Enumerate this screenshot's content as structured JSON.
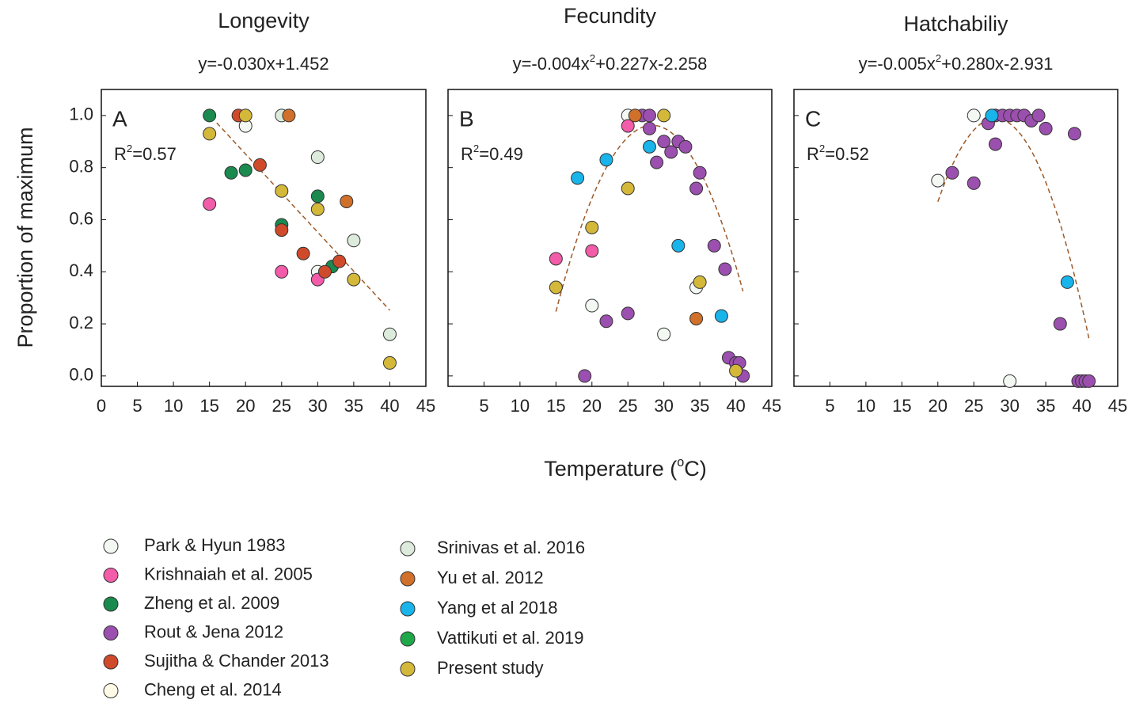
{
  "chart_data": {
    "type": "scatter",
    "ylabel": "Proportion of maximum",
    "xlabel": [
      "Temperature (",
      "o",
      "C)"
    ],
    "series": [
      {
        "name": "Park & Hyun 1983",
        "color": "#f3f8f3"
      },
      {
        "name": "Krishnaiah et al. 2005",
        "color": "#f25ca8"
      },
      {
        "name": "Zheng et al. 2009",
        "color": "#1a8a4e"
      },
      {
        "name": "Rout & Jena 2012",
        "color": "#9b4fae"
      },
      {
        "name": "Sujitha & Chander 2013",
        "color": "#cf4a2b"
      },
      {
        "name": "Cheng et al. 2014",
        "color": "#fffbe6"
      },
      {
        "name": "Srinivas et al. 2016",
        "color": "#dcebdc"
      },
      {
        "name": "Yu et al. 2012",
        "color": "#d0702a"
      },
      {
        "name": "Yang et al 2018",
        "color": "#18b4ea"
      },
      {
        "name": "Vattikuti et al. 2019",
        "color": "#1fa84a"
      },
      {
        "name": "Present study",
        "color": "#d4b83a"
      }
    ],
    "panels": [
      {
        "title": "Longevity",
        "letter": "A",
        "equation": [
          "y=-0.030x+1.452"
        ],
        "r2": [
          "R",
          "2",
          "=0.57"
        ],
        "xlim": [
          0,
          45
        ],
        "ylim": [
          -0.04,
          1.1
        ],
        "xticks": [
          0,
          5,
          10,
          15,
          20,
          25,
          30,
          35,
          40,
          45
        ],
        "yticks": [
          {
            "value": 0,
            "label": "0.0"
          },
          {
            "value": 0.2,
            "label": "0.2"
          },
          {
            "value": 0.4,
            "label": "0.4"
          },
          {
            "value": 0.6,
            "label": "0.6"
          },
          {
            "value": 0.8,
            "label": "0.8"
          },
          {
            "value": 1,
            "label": "1.0"
          }
        ],
        "show_ytick_labels": true,
        "fit": {
          "coefficients": [
            -0.03,
            1.452
          ],
          "x": [
            16,
            40
          ]
        },
        "series": [
          {
            "x": [
              20,
              30
            ],
            "values": [
              0.96,
              0.4
            ]
          },
          {
            "x": [
              15,
              25,
              30
            ],
            "values": [
              0.66,
              0.4,
              0.37
            ]
          },
          {
            "x": [
              15,
              18,
              20,
              25,
              30,
              32
            ],
            "values": [
              1,
              0.78,
              0.79,
              0.58,
              0.69,
              0.42
            ]
          },
          {
            "x": [],
            "values": []
          },
          {
            "x": [
              19,
              22,
              25,
              28,
              31,
              33
            ],
            "values": [
              1,
              0.81,
              0.56,
              0.47,
              0.4,
              0.44
            ]
          },
          {
            "x": [],
            "values": []
          },
          {
            "x": [
              25,
              30,
              35,
              40
            ],
            "values": [
              1,
              0.84,
              0.52,
              0.16
            ]
          },
          {
            "x": [
              26,
              34
            ],
            "values": [
              1,
              0.67
            ]
          },
          {
            "x": [],
            "values": []
          },
          {
            "x": [],
            "values": []
          },
          {
            "x": [
              15,
              20,
              25,
              30,
              35,
              40
            ],
            "values": [
              0.93,
              1,
              0.71,
              0.64,
              0.37,
              0.05
            ]
          }
        ]
      },
      {
        "title": "Fecundity",
        "letter": "B",
        "equation": [
          "y=-0.004x",
          "2",
          "+0.227x-2.258"
        ],
        "r2": [
          "R",
          "2",
          "=0.49"
        ],
        "xlim": [
          0,
          45
        ],
        "ylim": [
          -0.04,
          1.1
        ],
        "xticks": [
          5,
          10,
          15,
          20,
          25,
          30,
          35,
          40,
          45
        ],
        "yticks": [
          0,
          0.2,
          0.4,
          0.6,
          0.8,
          1
        ],
        "show_ytick_labels": false,
        "fit": {
          "coefficients": [
            -0.004,
            0.227,
            -2.258
          ],
          "x": [
            15,
            41
          ]
        },
        "series": [
          {
            "x": [
              25,
              20,
              30,
              34.5
            ],
            "values": [
              1,
              0.27,
              0.16,
              0.34
            ]
          },
          {
            "x": [
              15,
              20,
              25
            ],
            "values": [
              0.45,
              0.48,
              0.96
            ]
          },
          {
            "x": [],
            "values": []
          },
          {
            "x": [
              19,
              22,
              25,
              27,
              28,
              28,
              29,
              30,
              31,
              32,
              33,
              34.5,
              35,
              37,
              38.5,
              39,
              40,
              40.5,
              41
            ],
            "values": [
              0,
              0.21,
              0.24,
              1,
              1,
              0.95,
              0.82,
              0.9,
              0.86,
              0.9,
              0.88,
              0.72,
              0.78,
              0.5,
              0.41,
              0.07,
              0.05,
              0.05,
              0
            ]
          },
          {
            "x": [],
            "values": []
          },
          {
            "x": [],
            "values": []
          },
          {
            "x": [],
            "values": []
          },
          {
            "x": [
              26,
              34.5
            ],
            "values": [
              1,
              0.22
            ]
          },
          {
            "x": [
              18,
              22,
              28,
              32,
              38
            ],
            "values": [
              0.76,
              0.83,
              0.88,
              0.5,
              0.23
            ]
          },
          {
            "x": [],
            "values": []
          },
          {
            "x": [
              15,
              20,
              25,
              30,
              35,
              40
            ],
            "values": [
              0.34,
              0.57,
              0.72,
              1,
              0.36,
              0.02
            ]
          }
        ]
      },
      {
        "title": "Hatchabiliy",
        "letter": "C",
        "equation": [
          "y=-0.005x",
          "2",
          "+0.280x-2.931"
        ],
        "r2": [
          "R",
          "2",
          "=0.52"
        ],
        "xlim": [
          0,
          45
        ],
        "ylim": [
          -0.04,
          1.1
        ],
        "xticks": [
          5,
          10,
          15,
          20,
          25,
          30,
          35,
          40,
          45
        ],
        "yticks": [
          0,
          0.2,
          0.4,
          0.6,
          0.8,
          1
        ],
        "show_ytick_labels": false,
        "fit": {
          "coefficients": [
            -0.005,
            0.28,
            -2.931
          ],
          "x": [
            20,
            41
          ]
        },
        "series": [
          {
            "x": [
              20,
              25,
              30
            ],
            "values": [
              0.75,
              1,
              -0.02
            ]
          },
          {
            "x": [],
            "values": []
          },
          {
            "x": [],
            "values": []
          },
          {
            "x": [
              22,
              25,
              27,
              28,
              28,
              29,
              30,
              31,
              32,
              33,
              34,
              35,
              37,
              39,
              39.5,
              40,
              40.5,
              41
            ],
            "values": [
              0.78,
              0.74,
              0.97,
              0.89,
              1,
              1,
              1,
              1,
              1,
              0.98,
              1,
              0.95,
              0.2,
              0.93,
              -0.02,
              -0.02,
              -0.02,
              -0.02
            ]
          },
          {
            "x": [],
            "values": []
          },
          {
            "x": [],
            "values": []
          },
          {
            "x": [],
            "values": []
          },
          {
            "x": [],
            "values": []
          },
          {
            "x": [
              27.5,
              38
            ],
            "values": [
              1,
              0.36
            ]
          },
          {
            "x": [],
            "values": []
          },
          {
            "x": [],
            "values": []
          }
        ]
      }
    ]
  }
}
